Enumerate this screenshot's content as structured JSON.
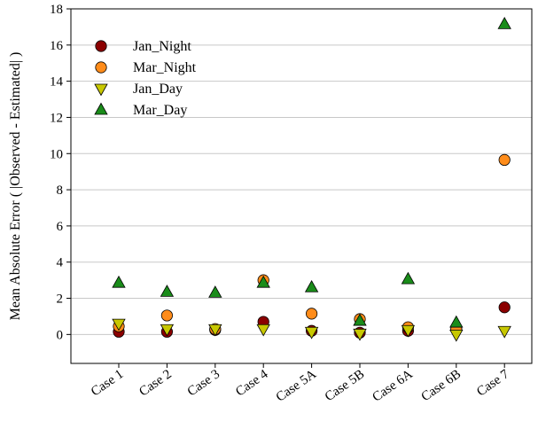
{
  "chart_data": {
    "type": "scatter",
    "title": "",
    "xlabel": "",
    "ylabel": "Mean Absolute Error ( |Observed - Estimated| )",
    "categories": [
      "Case 1",
      "Case 2",
      "Case 3",
      "Case 4",
      "Case 5A",
      "Case 5B",
      "Case 6A",
      "Case 6B",
      "Case 7"
    ],
    "ylim": [
      -1.6,
      18
    ],
    "yticks": [
      0,
      2,
      4,
      6,
      8,
      10,
      12,
      14,
      16,
      18
    ],
    "grid": "horizontal",
    "legend_position": "top-left",
    "series": [
      {
        "name": "Jan_Night",
        "marker": "circle",
        "color": "#8b0000",
        "values": [
          0.15,
          0.15,
          0.25,
          0.7,
          0.2,
          0.1,
          0.2,
          0.3,
          1.5
        ]
      },
      {
        "name": "Mar_Night",
        "marker": "circle",
        "color": "#ff8c1a",
        "values": [
          0.45,
          1.05,
          0.3,
          3.0,
          1.15,
          0.85,
          0.4,
          0.3,
          9.65
        ]
      },
      {
        "name": "Jan_Day",
        "marker": "triangle-down",
        "color": "#c8c800",
        "values": [
          0.6,
          0.3,
          0.3,
          0.3,
          0.15,
          0.05,
          0.25,
          0.0,
          0.2
        ]
      },
      {
        "name": "Mar_Day",
        "marker": "triangle-up",
        "color": "#1a8c1a",
        "values": [
          2.85,
          2.35,
          2.3,
          2.85,
          2.6,
          0.75,
          3.05,
          0.65,
          17.15
        ]
      }
    ]
  }
}
